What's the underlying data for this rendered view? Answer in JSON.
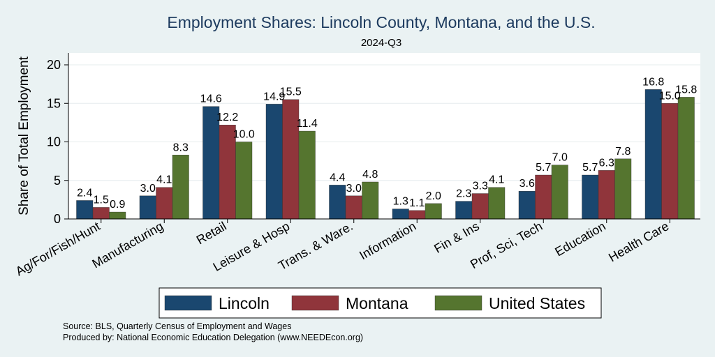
{
  "chart_data": {
    "type": "bar",
    "title": "Employment Shares: Lincoln County, Montana, and the U.S.",
    "subtitle": "2024-Q3",
    "ylabel": "Share of Total Employment",
    "xlabel": "",
    "ylim": [
      0,
      21.5
    ],
    "yticks": [
      0,
      5,
      10,
      15,
      20
    ],
    "grid": true,
    "legend_position": "bottom",
    "categories": [
      "Ag/For/Fish/Hunt",
      "Manufacturing",
      "Retail",
      "Leisure & Hosp",
      "Trans. & Ware.",
      "Information",
      "Fin & Ins",
      "Prof, Sci, Tech",
      "Education",
      "Health Care"
    ],
    "series": [
      {
        "name": "Lincoln",
        "color": "#1a476f",
        "values": [
          2.4,
          3.0,
          14.6,
          14.9,
          4.4,
          1.3,
          2.3,
          3.6,
          5.7,
          16.8
        ],
        "labels": [
          "2.4",
          "3.0",
          "14.6",
          "14.9",
          "4.4",
          "1.3",
          "2.3",
          "3.6",
          "5.7",
          "16.8"
        ]
      },
      {
        "name": "Montana",
        "color": "#90353b",
        "values": [
          1.5,
          4.1,
          12.2,
          15.5,
          3.0,
          1.1,
          3.3,
          5.7,
          6.3,
          15.0
        ],
        "labels": [
          "1.5",
          "4.1",
          "12.2",
          "15.5",
          "3.0",
          "1.1",
          "3.3",
          "5.7",
          "6.3",
          "15.0"
        ]
      },
      {
        "name": "United States",
        "color": "#55752f",
        "values": [
          0.9,
          8.3,
          10.0,
          11.4,
          4.8,
          2.0,
          4.1,
          7.0,
          7.8,
          15.8
        ],
        "labels": [
          "0.9",
          "8.3",
          "10.0",
          "11.4",
          "4.8",
          "2.0",
          "4.1",
          "7.0",
          "7.8",
          "15.8"
        ]
      }
    ]
  },
  "source_note": "Source: BLS, Quarterly Census of Employment and Wages",
  "produced_note": "Produced by: National Economic Education Delegation (www.NEEDEcon.org)"
}
